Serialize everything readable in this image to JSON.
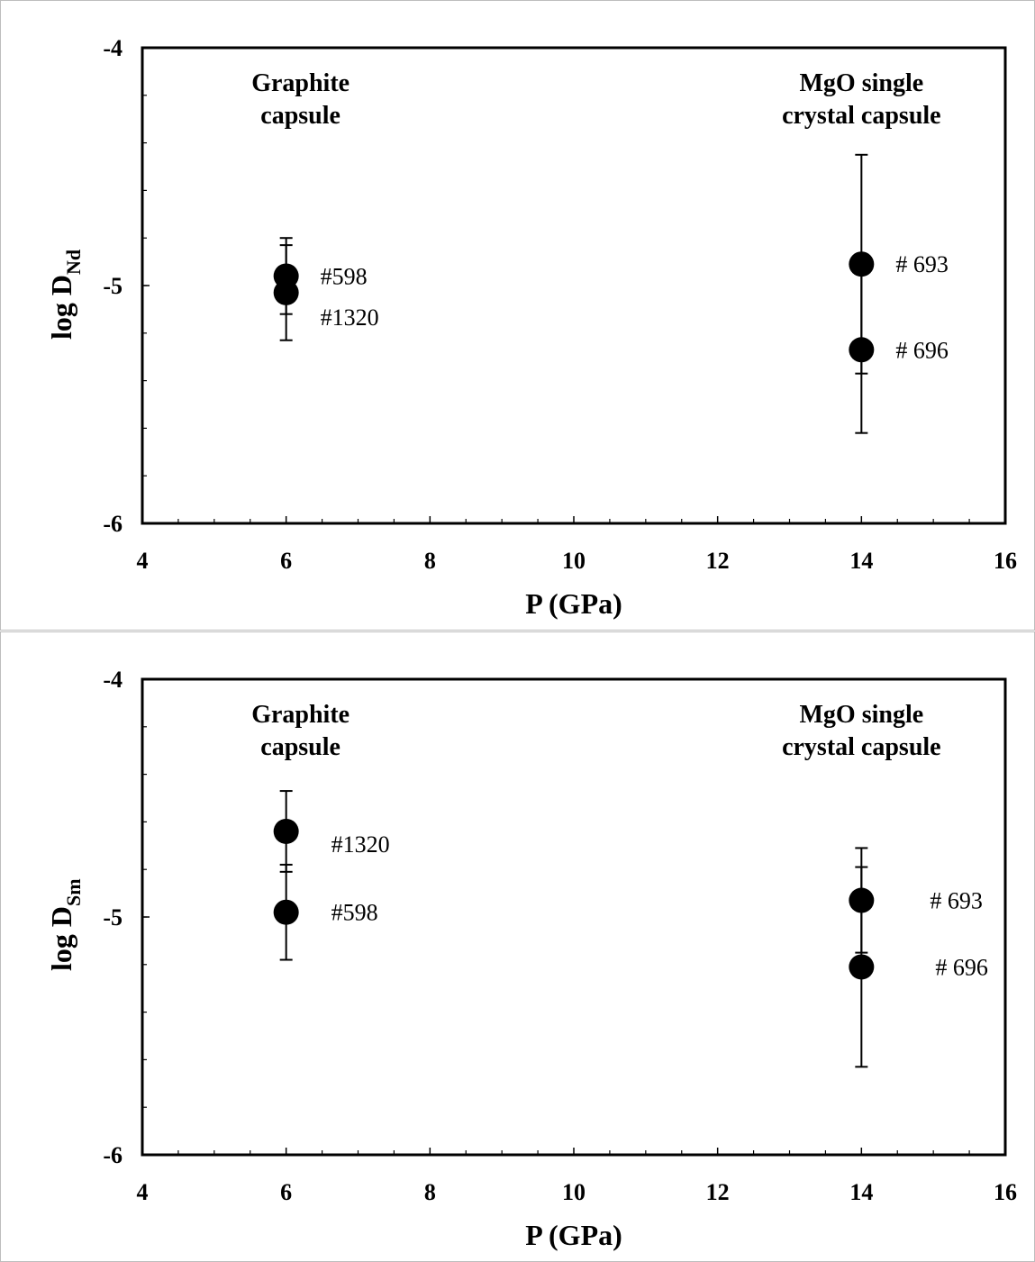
{
  "chart_data": [
    {
      "type": "scatter",
      "xlabel": "P (GPa)",
      "ylabel_main": "log D",
      "ylabel_sub": "Nd",
      "xlim": [
        4,
        16
      ],
      "ylim": [
        -6,
        -4
      ],
      "x_ticks": [
        4,
        6,
        8,
        10,
        12,
        14,
        16
      ],
      "x_tick_labels": [
        "4",
        "6",
        "8",
        "10",
        "12",
        "14",
        "16"
      ],
      "y_ticks": [
        -6,
        -5,
        -4
      ],
      "y_tick_labels": [
        "-6",
        "-5",
        "-4"
      ],
      "annotations": [
        {
          "lines": [
            "Graphite",
            "capsule"
          ],
          "x": 6.2,
          "y": -4.05
        },
        {
          "lines": [
            "MgO single",
            "crystal capsule"
          ],
          "x": 14,
          "y": -4.05
        }
      ],
      "points": [
        {
          "label": "#598",
          "x": 6,
          "y": -4.96,
          "err": 0.16
        },
        {
          "label": "#1320",
          "x": 6,
          "y": -5.03,
          "err": 0.2
        },
        {
          "label": "# 693",
          "x": 14,
          "y": -4.91,
          "err": 0.46
        },
        {
          "label": "# 696",
          "x": 14,
          "y": -5.27,
          "err": 0.35
        }
      ]
    },
    {
      "type": "scatter",
      "xlabel": "P (GPa)",
      "ylabel_main": "log D",
      "ylabel_sub": "Sm",
      "xlim": [
        4,
        16
      ],
      "ylim": [
        -6,
        -4
      ],
      "x_ticks": [
        4,
        6,
        8,
        10,
        12,
        14,
        16
      ],
      "x_tick_labels": [
        "4",
        "6",
        "8",
        "10",
        "12",
        "14",
        "16"
      ],
      "y_ticks": [
        -6,
        -5,
        -4
      ],
      "y_tick_labels": [
        "-6",
        "-5",
        "-4"
      ],
      "annotations": [
        {
          "lines": [
            "Graphite",
            "capsule"
          ],
          "x": 6.2,
          "y": -4.05
        },
        {
          "lines": [
            "MgO single",
            "crystal capsule"
          ],
          "x": 14,
          "y": -4.05
        }
      ],
      "points": [
        {
          "label": "#1320",
          "x": 6,
          "y": -4.64,
          "err": 0.17
        },
        {
          "label": "#598",
          "x": 6,
          "y": -4.98,
          "err": 0.2
        },
        {
          "label": "# 693",
          "x": 14,
          "y": -4.93,
          "err": 0.22
        },
        {
          "label": "# 696",
          "x": 14,
          "y": -5.21,
          "err": 0.42
        }
      ]
    }
  ]
}
